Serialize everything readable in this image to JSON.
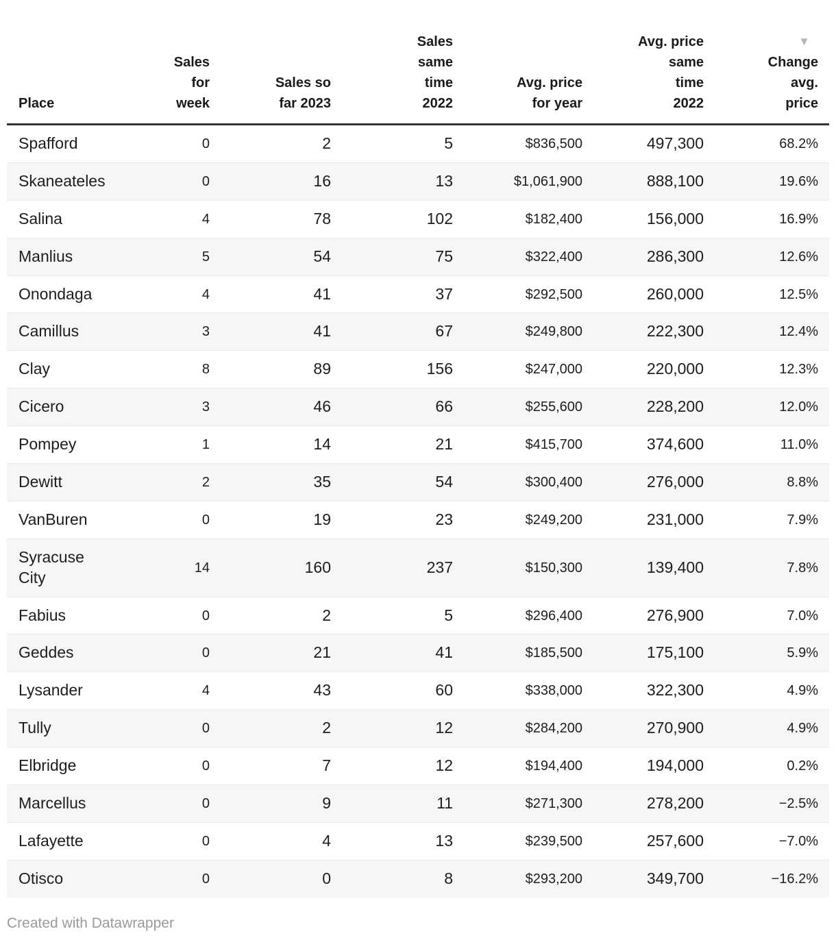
{
  "table": {
    "columns": [
      {
        "id": "place",
        "label": "Place",
        "align": "left",
        "size": "large",
        "sorted": false
      },
      {
        "id": "sales_week",
        "label": "Sales\nfor\nweek",
        "align": "right",
        "size": "small",
        "sorted": false
      },
      {
        "id": "sales_2023",
        "label": "Sales so\nfar 2023",
        "align": "right",
        "size": "large",
        "sorted": false
      },
      {
        "id": "sales_2022",
        "label": "Sales\nsame\ntime\n2022",
        "align": "right",
        "size": "large",
        "sorted": false
      },
      {
        "id": "avg_price_year",
        "label": "Avg. price\nfor year",
        "align": "right",
        "size": "small",
        "sorted": false
      },
      {
        "id": "avg_price_2022",
        "label": "Avg. price\nsame\ntime\n2022",
        "align": "right",
        "size": "large",
        "sorted": false
      },
      {
        "id": "change",
        "label": "Change\navg.\nprice",
        "align": "right",
        "size": "small",
        "sorted": true
      }
    ],
    "sort_icon": "▼",
    "rows": [
      [
        "Spafford",
        "0",
        "2",
        "5",
        "$836,500",
        "497,300",
        "68.2%"
      ],
      [
        "Skaneateles",
        "0",
        "16",
        "13",
        "$1,061,900",
        "888,100",
        "19.6%"
      ],
      [
        "Salina",
        "4",
        "78",
        "102",
        "$182,400",
        "156,000",
        "16.9%"
      ],
      [
        "Manlius",
        "5",
        "54",
        "75",
        "$322,400",
        "286,300",
        "12.6%"
      ],
      [
        "Onondaga",
        "4",
        "41",
        "37",
        "$292,500",
        "260,000",
        "12.5%"
      ],
      [
        "Camillus",
        "3",
        "41",
        "67",
        "$249,800",
        "222,300",
        "12.4%"
      ],
      [
        "Clay",
        "8",
        "89",
        "156",
        "$247,000",
        "220,000",
        "12.3%"
      ],
      [
        "Cicero",
        "3",
        "46",
        "66",
        "$255,600",
        "228,200",
        "12.0%"
      ],
      [
        "Pompey",
        "1",
        "14",
        "21",
        "$415,700",
        "374,600",
        "11.0%"
      ],
      [
        "Dewitt",
        "2",
        "35",
        "54",
        "$300,400",
        "276,000",
        "8.8%"
      ],
      [
        "VanBuren",
        "0",
        "19",
        "23",
        "$249,200",
        "231,000",
        "7.9%"
      ],
      [
        "Syracuse City",
        "14",
        "160",
        "237",
        "$150,300",
        "139,400",
        "7.8%"
      ],
      [
        "Fabius",
        "0",
        "2",
        "5",
        "$296,400",
        "276,900",
        "7.0%"
      ],
      [
        "Geddes",
        "0",
        "21",
        "41",
        "$185,500",
        "175,100",
        "5.9%"
      ],
      [
        "Lysander",
        "4",
        "43",
        "60",
        "$338,000",
        "322,300",
        "4.9%"
      ],
      [
        "Tully",
        "0",
        "2",
        "12",
        "$284,200",
        "270,900",
        "4.9%"
      ],
      [
        "Elbridge",
        "0",
        "7",
        "12",
        "$194,400",
        "194,000",
        "0.2%"
      ],
      [
        "Marcellus",
        "0",
        "9",
        "11",
        "$271,300",
        "278,200",
        "−2.5%"
      ],
      [
        "Lafayette",
        "0",
        "4",
        "13",
        "$239,500",
        "257,600",
        "−7.0%"
      ],
      [
        "Otisco",
        "0",
        "0",
        "8",
        "$293,200",
        "349,700",
        "−16.2%"
      ]
    ]
  },
  "footer": {
    "credit": "Created with Datawrapper"
  },
  "colors": {
    "header_rule": "#333333",
    "row_stripe": "#f6f6f6",
    "row_separator": "#e9e9e9",
    "text": "#1d1d1d",
    "muted_text": "#9a9a9a",
    "sort_icon": "#b3b7bb"
  }
}
